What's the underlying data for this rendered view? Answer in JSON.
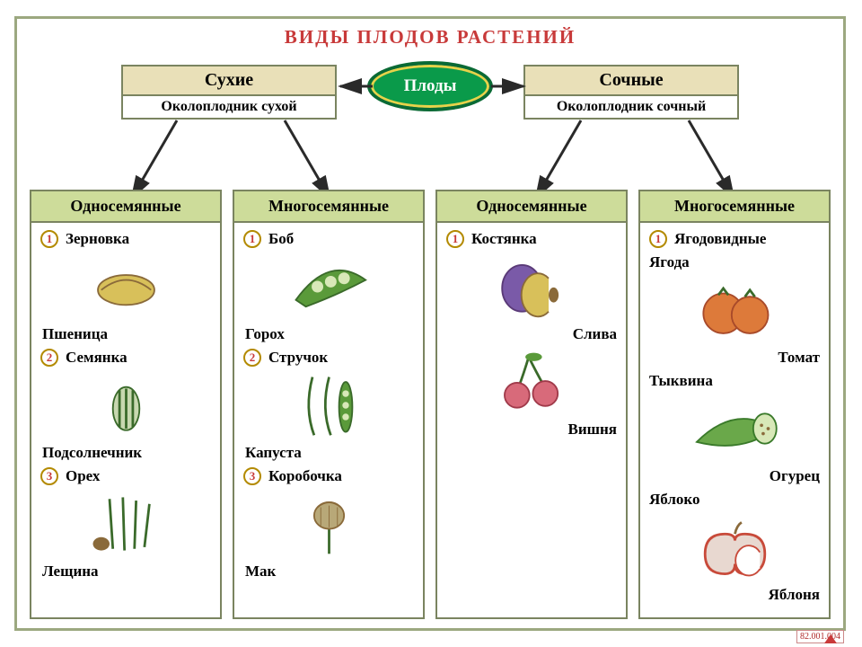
{
  "title": "ВИДЫ  ПЛОДОВ  РАСТЕНИЙ",
  "title_color": "#c83a3a",
  "center": {
    "label": "Плоды",
    "fill": "#0a9a4a",
    "stroke": "#0a6a35",
    "ring": "#e7d24a",
    "text_color": "#ffffff"
  },
  "branches": {
    "left": {
      "title": "Сухие",
      "subtitle": "Околоплодник сухой",
      "head_bg": "#e9e0b8"
    },
    "right": {
      "title": "Сочные",
      "subtitle": "Околоплодник сочный",
      "head_bg": "#e9e0b8"
    }
  },
  "arrow_color": "#2a2a2a",
  "card_head_bg": "#cddc9a",
  "num_ring": "#b38a00",
  "num_text": "#c83a3a",
  "columns": [
    {
      "head": "Односемянные",
      "items": [
        {
          "n": 1,
          "type": "Зерновка",
          "example": "Пшеница",
          "icon": "wheat"
        },
        {
          "n": 2,
          "type": "Семянка",
          "example": "Подсолнечник",
          "icon": "seed"
        },
        {
          "n": 3,
          "type": "Орех",
          "example": "Лещина",
          "icon": "hazel"
        }
      ]
    },
    {
      "head": "Многосемянные",
      "items": [
        {
          "n": 1,
          "type": "Боб",
          "example": "Горох",
          "icon": "pea"
        },
        {
          "n": 2,
          "type": "Стручок",
          "example": "Капуста",
          "icon": "pod"
        },
        {
          "n": 3,
          "type": "Коробочка",
          "example": "Мак",
          "icon": "poppy"
        }
      ]
    },
    {
      "head": "Односемянные",
      "items": [
        {
          "n": 1,
          "type": "Костянка",
          "example": "Слива",
          "icon": "plum"
        },
        {
          "n": 0,
          "type": "",
          "example": "Вишня",
          "icon": "cherry"
        }
      ]
    },
    {
      "head": "Многосемянные",
      "items": [
        {
          "n": 1,
          "type": "Ягодовидные",
          "example": "",
          "icon": ""
        },
        {
          "n": 0,
          "type": "Ягода",
          "example": "Томат",
          "icon": "tomato"
        },
        {
          "n": 0,
          "type": "Тыквина",
          "example": "Огурец",
          "icon": "cucumber"
        },
        {
          "n": 0,
          "type": "Яблоко",
          "example": "Яблоня",
          "icon": "apple"
        }
      ]
    }
  ],
  "side_code": "82.001.004",
  "palette": {
    "border": "#7a8460",
    "green_leaf": "#5a9a3a",
    "green_dark": "#3a6a2a",
    "yellow": "#d8c05a",
    "brown": "#8a6a3a",
    "purple": "#7a5aa8",
    "purple_dark": "#5a3a78",
    "red": "#c84a3a",
    "orange": "#dd7a3a",
    "pink": "#d86a7a",
    "cuc_green": "#6aa84a",
    "cuc_dark": "#3a7a2a"
  }
}
